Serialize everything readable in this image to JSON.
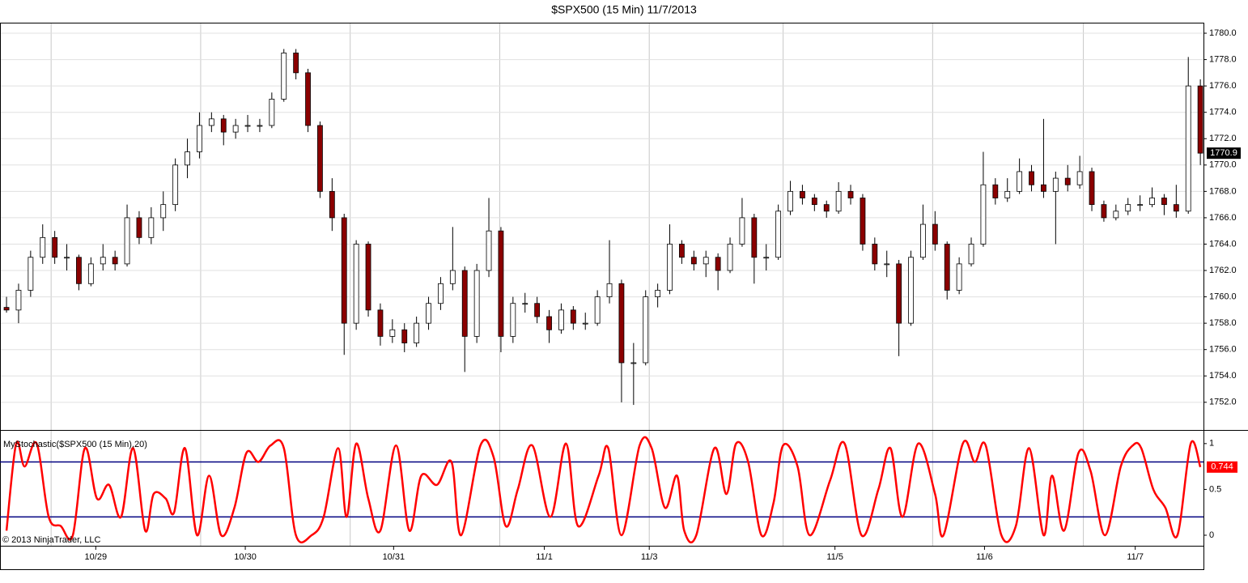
{
  "title": "$SPX500 (15 Min)  11/7/2013",
  "copyright": "© 2013 NinjaTrader, LLC",
  "x_axis": {
    "xlim": [
      -0.54,
      99.26
    ],
    "xticks": [
      {
        "value": 7.4,
        "label": "10/29"
      },
      {
        "value": 19.8,
        "label": "10/30"
      },
      {
        "value": 32.1,
        "label": "10/31"
      },
      {
        "value": 44.6,
        "label": "11/1"
      },
      {
        "value": 53.3,
        "label": "11/3"
      },
      {
        "value": 68.7,
        "label": "11/5"
      },
      {
        "value": 81.1,
        "label": "11/6"
      },
      {
        "value": 93.6,
        "label": "11/7"
      }
    ],
    "xgrid": [
      3.7,
      16.1,
      28.5,
      40.9,
      53.3,
      64.4,
      76.8,
      89.3
    ]
  },
  "chart_data": [
    {
      "type": "ohlc",
      "up_color": "#ffffff",
      "down_color": "#8b0000",
      "grid": true,
      "ylim": [
        1749.9,
        1780.8
      ],
      "yticks": [
        {
          "value": 1752,
          "label": "1752.0"
        },
        {
          "value": 1754,
          "label": "1754.0"
        },
        {
          "value": 1756,
          "label": "1756.0"
        },
        {
          "value": 1758,
          "label": "1758.0"
        },
        {
          "value": 1760,
          "label": "1760.0"
        },
        {
          "value": 1762,
          "label": "1762.0"
        },
        {
          "value": 1764,
          "label": "1764.0"
        },
        {
          "value": 1766,
          "label": "1766.0"
        },
        {
          "value": 1768,
          "label": "1768.0"
        },
        {
          "value": 1770,
          "label": "1770.0"
        },
        {
          "value": 1772,
          "label": "1772.0"
        },
        {
          "value": 1774,
          "label": "1774.0"
        },
        {
          "value": 1776,
          "label": "1776.0"
        },
        {
          "value": 1778,
          "label": "1778.0"
        },
        {
          "value": 1780,
          "label": "1780.0"
        }
      ],
      "bars": [
        [
          1759.2,
          1760,
          1758.8,
          1759
        ],
        [
          1759,
          1761,
          1758,
          1760.5
        ],
        [
          1760.5,
          1763.5,
          1760,
          1763
        ],
        [
          1763,
          1765.5,
          1762.5,
          1764.5
        ],
        [
          1764.5,
          1765,
          1762.5,
          1763
        ],
        [
          1763,
          1764,
          1762,
          1763
        ],
        [
          1763,
          1763.2,
          1760.5,
          1761
        ],
        [
          1761,
          1763,
          1760.8,
          1762.5
        ],
        [
          1762.5,
          1764,
          1762,
          1763
        ],
        [
          1763,
          1763.5,
          1762,
          1762.5
        ],
        [
          1762.5,
          1767,
          1762.3,
          1766
        ],
        [
          1766,
          1766.5,
          1764,
          1764.5
        ],
        [
          1764.5,
          1766.8,
          1764,
          1766
        ],
        [
          1766,
          1768,
          1765,
          1767
        ],
        [
          1767,
          1770.5,
          1766.5,
          1770
        ],
        [
          1770,
          1772,
          1769,
          1771
        ],
        [
          1771,
          1774,
          1770.5,
          1773
        ],
        [
          1773,
          1774,
          1772.5,
          1773.5
        ],
        [
          1773.5,
          1773.8,
          1771.5,
          1772.5
        ],
        [
          1772.5,
          1773.5,
          1772,
          1773
        ],
        [
          1773,
          1773.8,
          1772.5,
          1773
        ],
        [
          1773,
          1773.5,
          1772.5,
          1773
        ],
        [
          1773,
          1775.5,
          1772.8,
          1775
        ],
        [
          1775,
          1778.8,
          1774.8,
          1778.5
        ],
        [
          1778.5,
          1778.8,
          1776.5,
          1777
        ],
        [
          1777,
          1777.3,
          1772.5,
          1773
        ],
        [
          1773,
          1773.3,
          1767.5,
          1768
        ],
        [
          1768,
          1769,
          1765,
          1766
        ],
        [
          1766,
          1766.3,
          1755.6,
          1758
        ],
        [
          1758,
          1764.3,
          1757.5,
          1764
        ],
        [
          1764,
          1764.2,
          1758.5,
          1759
        ],
        [
          1759,
          1759.5,
          1756.3,
          1757
        ],
        [
          1757,
          1758.3,
          1756.5,
          1757.5
        ],
        [
          1757.5,
          1758,
          1755.8,
          1756.5
        ],
        [
          1756.5,
          1758.5,
          1756.2,
          1758
        ],
        [
          1758,
          1760,
          1757.5,
          1759.5
        ],
        [
          1759.5,
          1761.5,
          1759,
          1761
        ],
        [
          1761,
          1765.3,
          1760.5,
          1762
        ],
        [
          1762,
          1762.3,
          1754.3,
          1757
        ],
        [
          1757,
          1762.5,
          1756.5,
          1762
        ],
        [
          1762,
          1767.5,
          1761.5,
          1765
        ],
        [
          1765,
          1765.3,
          1755.8,
          1757
        ],
        [
          1757,
          1760,
          1756.5,
          1759.5
        ],
        [
          1759.5,
          1760.3,
          1758.8,
          1759.5
        ],
        [
          1759.5,
          1760,
          1758,
          1758.5
        ],
        [
          1758.5,
          1759,
          1756.5,
          1757.5
        ],
        [
          1757.5,
          1759.5,
          1757.2,
          1759
        ],
        [
          1759,
          1759.3,
          1757.5,
          1758
        ],
        [
          1758,
          1758.8,
          1757.5,
          1758
        ],
        [
          1758,
          1760.5,
          1757.8,
          1760
        ],
        [
          1760,
          1764.3,
          1759.5,
          1761
        ],
        [
          1761,
          1761.3,
          1752,
          1755
        ],
        [
          1755,
          1756.5,
          1751.8,
          1755
        ],
        [
          1755,
          1760.5,
          1754.8,
          1760
        ],
        [
          1760,
          1761,
          1759.2,
          1760.5
        ],
        [
          1760.5,
          1765.5,
          1760.2,
          1764
        ],
        [
          1764,
          1764.3,
          1762.5,
          1763
        ],
        [
          1763,
          1763.5,
          1762,
          1762.5
        ],
        [
          1762.5,
          1763.5,
          1761.5,
          1763
        ],
        [
          1763,
          1763.3,
          1760.5,
          1762
        ],
        [
          1762,
          1764.5,
          1761.8,
          1764
        ],
        [
          1764,
          1767.5,
          1763.8,
          1766
        ],
        [
          1766,
          1766.3,
          1761,
          1763
        ],
        [
          1763,
          1764,
          1762,
          1763
        ],
        [
          1763,
          1767,
          1762.8,
          1766.5
        ],
        [
          1766.5,
          1768.8,
          1766.2,
          1768
        ],
        [
          1768,
          1768.5,
          1767,
          1767.5
        ],
        [
          1767.5,
          1767.8,
          1766.5,
          1767
        ],
        [
          1767,
          1767.3,
          1766,
          1766.5
        ],
        [
          1766.5,
          1768.7,
          1766.3,
          1768
        ],
        [
          1768,
          1768.5,
          1767,
          1767.5
        ],
        [
          1767.5,
          1767.8,
          1763.5,
          1764
        ],
        [
          1764,
          1764.5,
          1762,
          1762.5
        ],
        [
          1762.5,
          1763.5,
          1761.5,
          1762.5
        ],
        [
          1762.5,
          1762.8,
          1755.5,
          1758
        ],
        [
          1758,
          1763.5,
          1757.8,
          1763
        ],
        [
          1763,
          1767,
          1762.8,
          1765.5
        ],
        [
          1765.5,
          1766.5,
          1763.5,
          1764
        ],
        [
          1764,
          1764.2,
          1759.8,
          1760.5
        ],
        [
          1760.5,
          1763,
          1760.2,
          1762.5
        ],
        [
          1762.5,
          1764.5,
          1762.3,
          1764
        ],
        [
          1764,
          1771,
          1763.8,
          1768.5
        ],
        [
          1768.5,
          1769,
          1767,
          1767.5
        ],
        [
          1767.5,
          1769,
          1767.2,
          1768
        ],
        [
          1768,
          1770.5,
          1767.8,
          1769.5
        ],
        [
          1769.5,
          1770,
          1768,
          1768.5
        ],
        [
          1768.5,
          1773.5,
          1767.5,
          1768
        ],
        [
          1768,
          1769.5,
          1764,
          1769
        ],
        [
          1769,
          1770,
          1768,
          1768.5
        ],
        [
          1768.5,
          1770.7,
          1768.2,
          1769.5
        ],
        [
          1769.5,
          1769.8,
          1766.5,
          1767
        ],
        [
          1767,
          1767.3,
          1765.7,
          1766
        ],
        [
          1766,
          1767,
          1765.8,
          1766.5
        ],
        [
          1766.5,
          1767.5,
          1766.2,
          1767
        ],
        [
          1767,
          1767.7,
          1766.5,
          1767
        ],
        [
          1767,
          1768.3,
          1766.8,
          1767.5
        ],
        [
          1767.5,
          1767.8,
          1766.2,
          1767
        ],
        [
          1767,
          1768.5,
          1766,
          1766.5
        ],
        [
          1766.5,
          1778.2,
          1766.3,
          1776
        ],
        [
          1776,
          1776.5,
          1770,
          1770.9
        ]
      ]
    },
    {
      "type": "line",
      "label": "MyStochastic($SPX500 (15 Min),20)",
      "color": "#ff0000",
      "level_color": "#000080",
      "ylim": [
        -0.115,
        1.14
      ],
      "yticks": [
        0,
        0.5,
        1
      ],
      "levels": [
        0.2,
        0.8
      ],
      "x": [
        0,
        0.8,
        1.5,
        2.5,
        3.5,
        4.5,
        5.5,
        6.5,
        7.5,
        8.5,
        9.5,
        10.5,
        11.5,
        12.2,
        13.2,
        13.9,
        14.8,
        15.8,
        16.8,
        17.8,
        18.9,
        19.9,
        20.9,
        21.9,
        23,
        24,
        25.3,
        26.3,
        27.5,
        28.2,
        29,
        30,
        31,
        32.3,
        33.4,
        34.4,
        35.7,
        36.9,
        37.7,
        39.3,
        40.4,
        41.4,
        42.4,
        43.6,
        45.1,
        46.4,
        47.4,
        49.1,
        49.9,
        51,
        52.5,
        53.5,
        54.6,
        55.6,
        56.2,
        57.2,
        58.7,
        59.7,
        60.5,
        61.5,
        62.6,
        63.6,
        64.4,
        65.6,
        66.6,
        68.3,
        69.5,
        70.9,
        72.3,
        73.3,
        74.3,
        75.6,
        77,
        77.7,
        79.3,
        80.3,
        81.2,
        82.5,
        83.7,
        84.8,
        86,
        86.7,
        87.7,
        88.9,
        89.9,
        91.1,
        92.4,
        93.4,
        94.1,
        95.1,
        96.1,
        97.1,
        98.2,
        99
      ],
      "values": [
        0.05,
        1.0,
        0.75,
        1.0,
        0.2,
        0.1,
        0.0,
        0.95,
        0.4,
        0.55,
        0.2,
        0.95,
        0.05,
        0.45,
        0.4,
        0.25,
        0.95,
        0.0,
        0.65,
        0.0,
        0.3,
        0.9,
        0.8,
        0.98,
        0.95,
        0.0,
        0.0,
        0.2,
        0.95,
        0.2,
        1.0,
        0.4,
        0.05,
        0.98,
        0.05,
        0.65,
        0.55,
        0.8,
        0.0,
        0.98,
        0.85,
        0.1,
        0.5,
        0.98,
        0.2,
        1.0,
        0.1,
        0.65,
        0.95,
        0.0,
        0.98,
        0.95,
        0.3,
        0.65,
        0.05,
        0.0,
        0.95,
        0.45,
        1.0,
        0.8,
        0.0,
        0.35,
        0.98,
        0.75,
        0.0,
        0.6,
        1.0,
        0.0,
        0.5,
        0.95,
        0.2,
        1.0,
        0.45,
        0.0,
        1.0,
        0.8,
        0.98,
        0.0,
        0.1,
        0.95,
        0.0,
        0.65,
        0.05,
        0.9,
        0.7,
        0.0,
        0.75,
        0.98,
        0.95,
        0.5,
        0.3,
        0.0,
        1.0,
        0.744
      ]
    }
  ]
}
